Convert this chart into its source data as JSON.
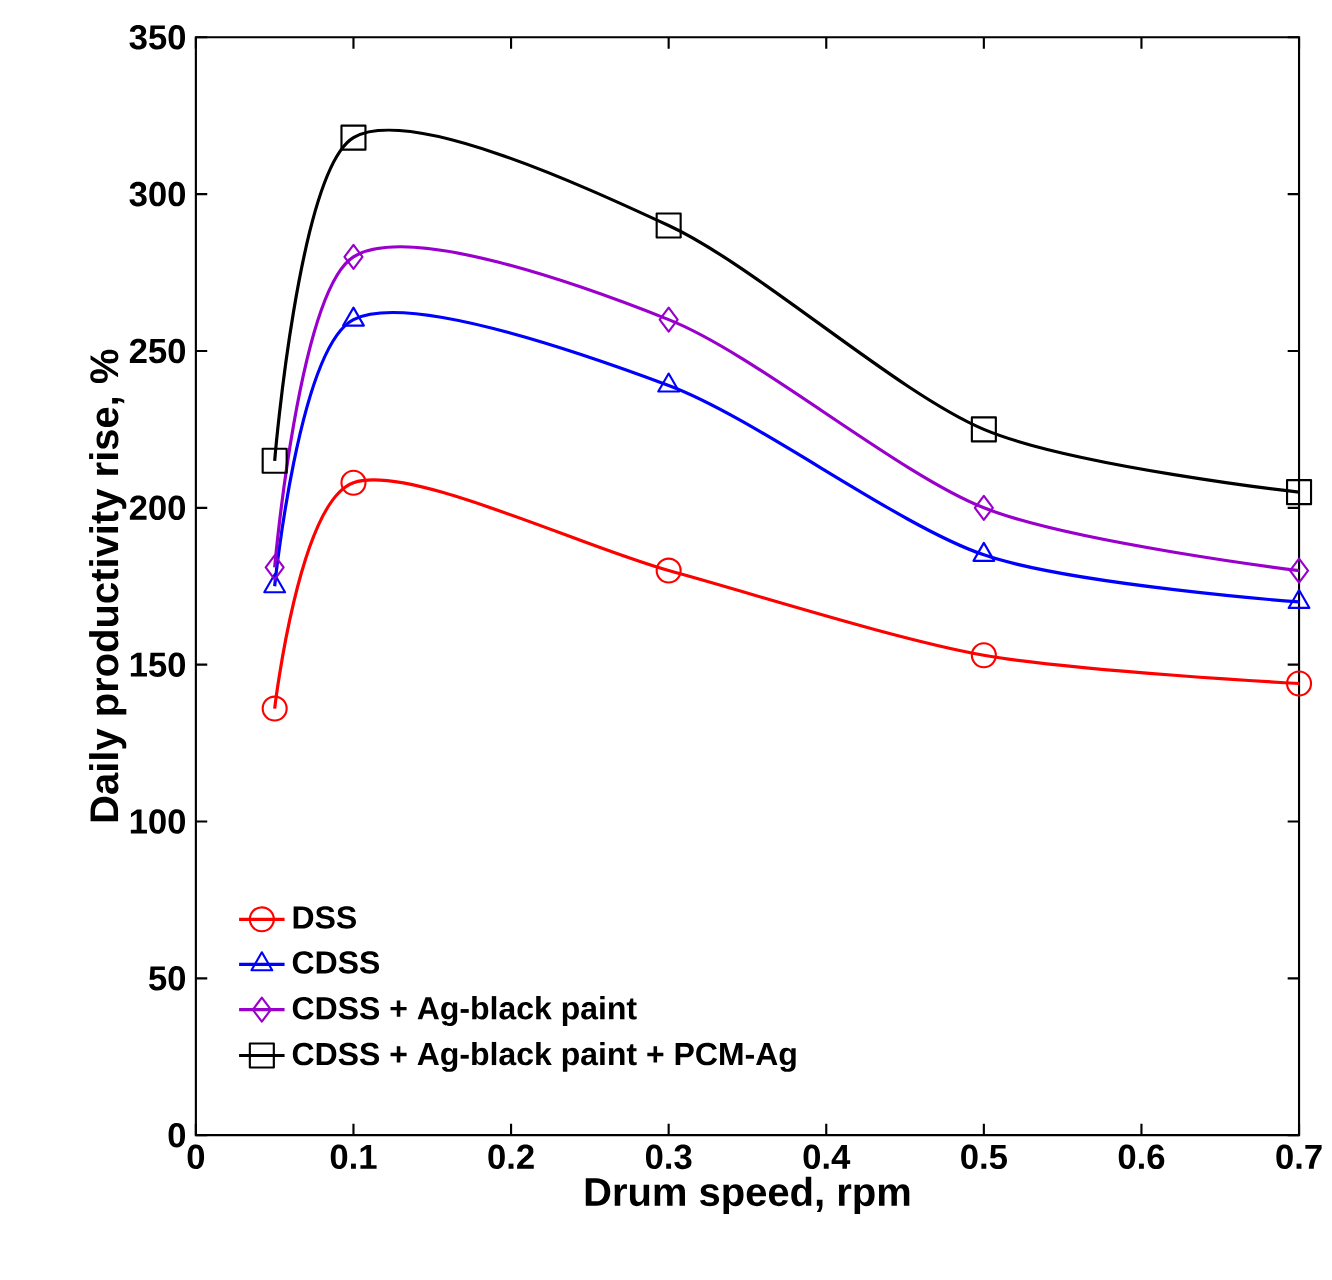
{
  "chart_data": {
    "type": "line",
    "xlabel": "Drum speed, rpm",
    "ylabel": "Daily productivity rise, %",
    "xlim": [
      0,
      0.7
    ],
    "xticks": [
      0,
      0.1,
      0.2,
      0.3,
      0.4,
      0.5,
      0.6,
      0.7
    ],
    "ylim": [
      0,
      350
    ],
    "yticks": [
      0,
      50,
      100,
      150,
      200,
      250,
      300,
      350
    ],
    "grid": false,
    "legend": "bottom left",
    "line_style": "solid",
    "x": [
      0.05,
      0.1,
      0.3,
      0.5,
      0.7
    ],
    "series": [
      {
        "name": "DSS",
        "color": "#ff0000",
        "marker": "circle",
        "values": [
          136,
          208,
          180,
          153,
          144
        ]
      },
      {
        "name": "CDSS",
        "color": "#0000ff",
        "marker": "triangle",
        "values": [
          175,
          260,
          239,
          185,
          170
        ]
      },
      {
        "name": "CDSS + Ag-black paint",
        "color": "#9900cc",
        "marker": "diamond",
        "values": [
          181,
          280,
          260,
          200,
          180
        ]
      },
      {
        "name": "CDSS + Ag-black paint + PCM-Ag",
        "color": "#000000",
        "marker": "square",
        "values": [
          215,
          318,
          290,
          225,
          205
        ]
      }
    ]
  }
}
